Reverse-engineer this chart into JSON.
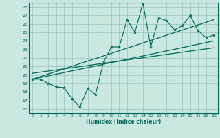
{
  "title": "",
  "xlabel": "Humidex (Indice chaleur)",
  "bg_color": "#c8e8e0",
  "grid_color": "#a0c8c0",
  "line_color": "#006858",
  "xlim": [
    -0.5,
    23.5
  ],
  "ylim": [
    15.5,
    28.5
  ],
  "xticks": [
    0,
    1,
    2,
    3,
    4,
    5,
    6,
    7,
    8,
    9,
    10,
    11,
    12,
    13,
    14,
    15,
    16,
    17,
    18,
    19,
    20,
    21,
    22,
    23
  ],
  "yticks": [
    16,
    17,
    18,
    19,
    20,
    21,
    22,
    23,
    24,
    25,
    26,
    27,
    28
  ],
  "data_x": [
    0,
    1,
    2,
    3,
    4,
    5,
    6,
    7,
    8,
    9,
    10,
    11,
    12,
    13,
    14,
    15,
    16,
    17,
    18,
    19,
    20,
    21,
    22,
    23
  ],
  "data_y": [
    19.5,
    19.5,
    19.0,
    18.6,
    18.5,
    17.2,
    16.2,
    18.4,
    17.7,
    21.5,
    23.3,
    23.3,
    26.5,
    25.0,
    28.5,
    23.3,
    26.7,
    26.4,
    25.3,
    25.8,
    27.0,
    25.2,
    24.4,
    24.7
  ],
  "trend1_x": [
    0,
    23
  ],
  "trend1_y": [
    19.5,
    26.5
  ],
  "trend2_x": [
    0,
    23
  ],
  "trend2_y": [
    19.5,
    24.0
  ],
  "trend3_x": [
    0,
    23
  ],
  "trend3_y": [
    20.2,
    23.2
  ]
}
